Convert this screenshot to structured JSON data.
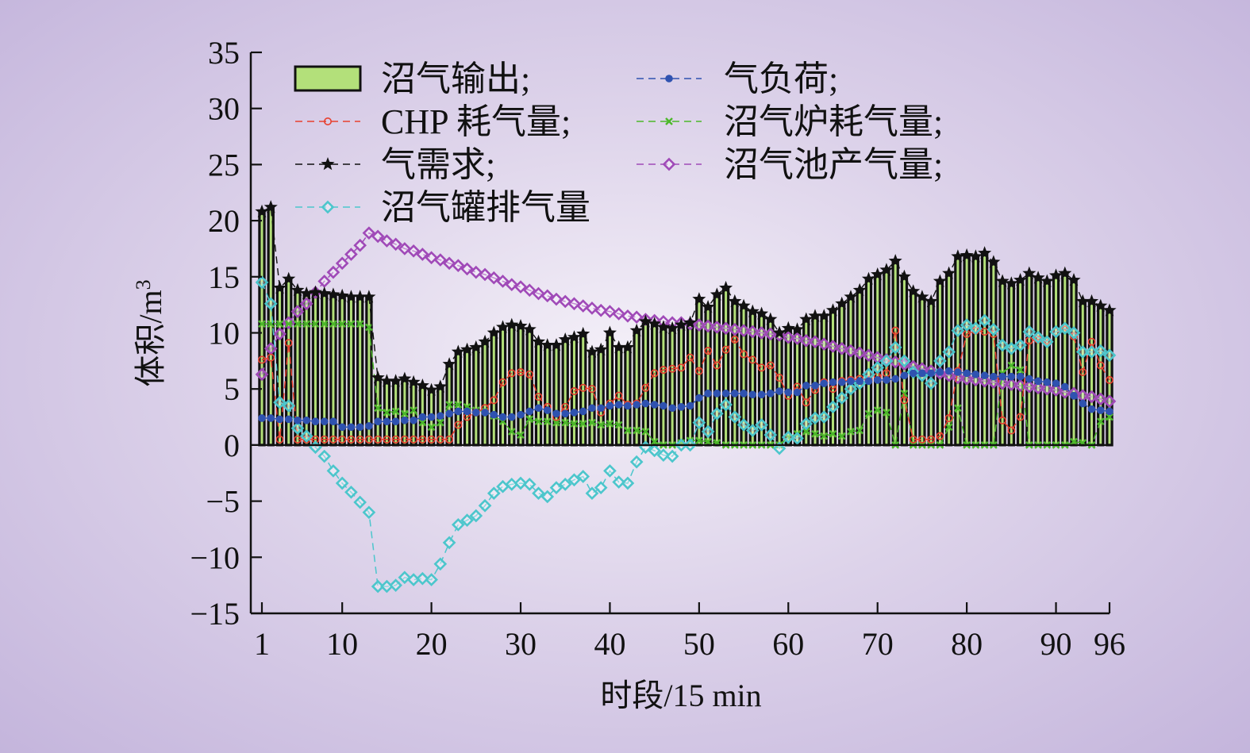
{
  "chart_data": {
    "type": "bar",
    "xlabel": "时段/15 min",
    "ylabel": "体积/m",
    "ylabel_sup": "3",
    "xlim": [
      1,
      96
    ],
    "ylim": [
      -15,
      35
    ],
    "xticks": [
      1,
      10,
      20,
      30,
      40,
      50,
      60,
      70,
      80,
      90,
      96
    ],
    "yticks": [
      -15,
      -10,
      -5,
      0,
      5,
      10,
      15,
      20,
      25,
      30,
      35
    ],
    "x": [
      1,
      2,
      3,
      4,
      5,
      6,
      7,
      8,
      9,
      10,
      11,
      12,
      13,
      14,
      15,
      16,
      17,
      18,
      19,
      20,
      21,
      22,
      23,
      24,
      25,
      26,
      27,
      28,
      29,
      30,
      31,
      32,
      33,
      34,
      35,
      36,
      37,
      38,
      39,
      40,
      41,
      42,
      43,
      44,
      45,
      46,
      47,
      48,
      49,
      50,
      51,
      52,
      53,
      54,
      55,
      56,
      57,
      58,
      59,
      60,
      61,
      62,
      63,
      64,
      65,
      66,
      67,
      68,
      69,
      70,
      71,
      72,
      73,
      74,
      75,
      76,
      77,
      78,
      79,
      80,
      81,
      82,
      83,
      84,
      85,
      86,
      87,
      88,
      89,
      90,
      91,
      92,
      93,
      94,
      95,
      96
    ],
    "colors": {
      "bar": "#b3e07a",
      "chp": "#e8402f",
      "demand": "#111111",
      "tank": "#4cc6cc",
      "load": "#2f52b0",
      "boiler": "#4cb82a",
      "digester": "#a04ab8"
    },
    "series": [
      {
        "key": "bar",
        "name": "沼气输出;",
        "type": "bar",
        "values": [
          20.8,
          21.2,
          14,
          14.8,
          13.8,
          13.5,
          13.6,
          13.5,
          13.4,
          13.3,
          13.2,
          13.2,
          13.2,
          6,
          5.7,
          5.7,
          5.9,
          5.6,
          5.3,
          4.9,
          5.2,
          7.2,
          8.3,
          8.5,
          8.7,
          9.2,
          10,
          10.5,
          10.7,
          10.6,
          10.3,
          9.2,
          8.9,
          8.9,
          9.4,
          9.6,
          9.9,
          8.3,
          8.5,
          10,
          8.7,
          8.7,
          10.2,
          11,
          10.8,
          10.5,
          10.4,
          10.7,
          10.9,
          13,
          12.3,
          13.4,
          14,
          12.8,
          12.4,
          11.9,
          11.7,
          11.2,
          10,
          10.4,
          10.3,
          11.2,
          11.5,
          11.5,
          12,
          12.6,
          13.2,
          13.8,
          14.8,
          15.2,
          15.6,
          16.4,
          15,
          13.7,
          13.2,
          12.8,
          14.6,
          15.3,
          16.8,
          16.9,
          16.8,
          17.1,
          16.3,
          14.6,
          14.4,
          14.7,
          15.3,
          14.9,
          14.6,
          15.1,
          15.3,
          14.7,
          12.8,
          12.8,
          12.4,
          12
        ]
      },
      {
        "key": "chp",
        "name": "CHP 耗气量;",
        "type": "line",
        "marker": "circle",
        "values": [
          7.6,
          7.8,
          0.5,
          9.1,
          0.5,
          0.5,
          0.5,
          0.5,
          0.5,
          0.5,
          0.5,
          0.5,
          0.5,
          0.5,
          0.5,
          0.5,
          0.5,
          0.5,
          0.5,
          0.5,
          0.5,
          0.5,
          1.8,
          2.5,
          2.9,
          3.3,
          4,
          5.6,
          6.4,
          6.5,
          6.3,
          4.3,
          3.4,
          2.5,
          3.4,
          4.8,
          5.1,
          5,
          2.9,
          3.7,
          4.4,
          3.6,
          3.7,
          5.1,
          6.4,
          6.7,
          6.8,
          6.9,
          7.8,
          6.6,
          8.4,
          7.1,
          8.5,
          9.4,
          8.1,
          7.6,
          6.9,
          7.1,
          6,
          4.4,
          5.2,
          3.8,
          4.9,
          5.6,
          5,
          5.7,
          5.8,
          5.9,
          5.8,
          6.1,
          6.4,
          10.2,
          4,
          0.5,
          0.5,
          0.5,
          0.8,
          2.4,
          6.6,
          9.9,
          10.2,
          10.1,
          9.9,
          2.2,
          1.3,
          2.5,
          9.3,
          9.4,
          9.3,
          10.1,
          10.3,
          9.7,
          6.5,
          9.2,
          7.1,
          5.8
        ]
      },
      {
        "key": "demand",
        "name": "气需求;",
        "type": "line",
        "marker": "star",
        "values": [
          20.8,
          21.2,
          14,
          14.8,
          13.8,
          13.5,
          13.6,
          13.5,
          13.4,
          13.3,
          13.2,
          13.2,
          13.2,
          6,
          5.7,
          5.7,
          5.9,
          5.6,
          5.3,
          4.9,
          5.2,
          7.2,
          8.3,
          8.5,
          8.7,
          9.2,
          10,
          10.5,
          10.7,
          10.6,
          10.3,
          9.2,
          8.9,
          8.9,
          9.4,
          9.6,
          9.9,
          8.3,
          8.5,
          10,
          8.7,
          8.7,
          10.2,
          11,
          10.8,
          10.5,
          10.4,
          10.7,
          10.9,
          13,
          12.3,
          13.4,
          14,
          12.8,
          12.4,
          11.9,
          11.7,
          11.2,
          10,
          10.4,
          10.3,
          11.2,
          11.5,
          11.5,
          12,
          12.6,
          13.2,
          13.8,
          14.8,
          15.2,
          15.6,
          16.4,
          15,
          13.7,
          13.2,
          12.8,
          14.6,
          15.3,
          16.8,
          16.9,
          16.8,
          17.1,
          16.3,
          14.6,
          14.4,
          14.7,
          15.3,
          14.9,
          14.6,
          15.1,
          15.3,
          14.7,
          12.8,
          12.8,
          12.4,
          12
        ]
      },
      {
        "key": "tank",
        "name": "沼气罐排气量",
        "type": "line",
        "marker": "diamond",
        "values": [
          14.5,
          12.6,
          3.8,
          3.5,
          1.5,
          0.8,
          -0.2,
          -1,
          -2.3,
          -3.4,
          -4.2,
          -5.1,
          -6,
          -12.6,
          -12.6,
          -12.5,
          -11.8,
          -12,
          -11.9,
          -12,
          -10.6,
          -8.7,
          -7.1,
          -6.7,
          -6.3,
          -5.4,
          -4.3,
          -3.7,
          -3.5,
          -3.4,
          -3.5,
          -4.3,
          -4.6,
          -3.8,
          -3.5,
          -3.1,
          -2.8,
          -4.3,
          -3.8,
          -2.3,
          -3.3,
          -3.4,
          -1.5,
          -0.2,
          -0.5,
          -0.9,
          -1,
          0,
          0,
          2,
          1.2,
          2.8,
          3.6,
          2.5,
          1.8,
          1.3,
          1.8,
          0.9,
          -0.3,
          0.7,
          0.6,
          1.9,
          2.4,
          2.5,
          3.4,
          4.2,
          5,
          5.5,
          6.3,
          6.9,
          7.5,
          8.7,
          7.5,
          6.5,
          6.2,
          5.5,
          7.5,
          8.3,
          10.2,
          10.7,
          10.4,
          11.1,
          10.3,
          8.9,
          8.6,
          8.9,
          10.1,
          9.6,
          9.2,
          10.1,
          10.4,
          10,
          8.3,
          8.3,
          8.4,
          8
        ]
      },
      {
        "key": "load",
        "name": "气负荷;",
        "type": "line",
        "marker": "dot",
        "values": [
          2.4,
          2.4,
          2.3,
          2.3,
          2.2,
          2.2,
          2.1,
          2.1,
          2.1,
          1.6,
          1.6,
          1.6,
          1.7,
          2.1,
          2.1,
          2.1,
          2.2,
          2.2,
          2.5,
          2.5,
          2.6,
          2.8,
          3,
          3,
          2.9,
          2.9,
          2.7,
          2.5,
          2.5,
          2.7,
          3,
          3.3,
          3.1,
          2.8,
          2.8,
          2.9,
          3,
          3.3,
          3.3,
          3.5,
          3.6,
          3.5,
          3.6,
          3.7,
          3.6,
          3.5,
          3.3,
          3.4,
          3.5,
          4.2,
          4.6,
          4.6,
          4.6,
          4.6,
          4.6,
          4.5,
          4.5,
          4.6,
          4.8,
          4.7,
          4.7,
          5.3,
          5.3,
          5.5,
          5.6,
          5.6,
          5.7,
          5.7,
          5.7,
          5.8,
          5.8,
          5.9,
          6.2,
          6.4,
          6.4,
          6.4,
          6.5,
          6.6,
          6.5,
          6.4,
          6.3,
          6.2,
          6.1,
          6.1,
          6.1,
          6.1,
          5.9,
          5.7,
          5.6,
          5.5,
          5.2,
          4.4,
          3.7,
          3.2,
          3.1,
          3
        ]
      },
      {
        "key": "boiler",
        "name": "沼气炉耗气量;",
        "type": "line",
        "marker": "cross",
        "values": [
          10.8,
          10.8,
          10.8,
          10.8,
          10.8,
          10.8,
          10.8,
          10.8,
          10.8,
          10.8,
          10.8,
          10.8,
          10.5,
          3.3,
          2.9,
          3,
          2.8,
          3.1,
          2,
          1.6,
          2,
          3.6,
          3.6,
          3.4,
          3.1,
          3,
          2.6,
          2.1,
          1.2,
          0.9,
          2.3,
          2.1,
          2.1,
          2,
          2,
          1.9,
          1.9,
          2,
          1.8,
          1.9,
          1.8,
          1.3,
          1.3,
          1.2,
          0.3,
          0,
          0,
          0.2,
          0.4,
          0.4,
          0.3,
          0.2,
          0,
          0,
          0,
          0,
          0,
          0,
          0,
          0.7,
          1,
          1.2,
          1,
          0.8,
          1,
          0.8,
          1.2,
          1.3,
          2.8,
          3.1,
          2.9,
          0,
          4.6,
          0,
          0,
          0,
          0,
          1.6,
          3.3,
          0,
          0,
          0,
          0,
          6.4,
          7.1,
          6.7,
          0,
          0,
          0,
          0,
          0,
          0.3,
          0.2,
          0,
          2.1,
          2.5
        ]
      },
      {
        "key": "digester",
        "name": "沼气池产气量;",
        "type": "line",
        "marker": "diamond",
        "values": [
          6.3,
          8.6,
          9.9,
          10.9,
          11.9,
          12.6,
          13.6,
          14.6,
          15.4,
          16.2,
          17,
          17.8,
          18.9,
          18.6,
          18.2,
          17.9,
          17.5,
          17.3,
          17,
          16.7,
          16.5,
          16.2,
          16,
          15.7,
          15.4,
          15.2,
          14.9,
          14.6,
          14.3,
          14.1,
          13.8,
          13.5,
          13.3,
          13,
          12.8,
          12.6,
          12.4,
          12.2,
          12,
          11.9,
          11.7,
          11.5,
          11.4,
          11.2,
          11.1,
          11,
          10.9,
          10.9,
          10.8,
          10.7,
          10.6,
          10.5,
          10.4,
          10.3,
          10.2,
          10.1,
          10,
          9.9,
          9.8,
          9.6,
          9.5,
          9.3,
          9.2,
          9,
          8.8,
          8.6,
          8.4,
          8.2,
          8,
          7.8,
          7.6,
          7.4,
          7.2,
          7,
          6.8,
          6.6,
          6.4,
          6.2,
          6,
          5.9,
          5.8,
          5.7,
          5.6,
          5.5,
          5.4,
          5.3,
          5.2,
          5.1,
          5,
          4.9,
          4.7,
          4.6,
          4.4,
          4.3,
          4.1,
          3.9
        ]
      }
    ],
    "legend": [
      {
        "key": "bar",
        "col": 0,
        "row": 0
      },
      {
        "key": "chp",
        "col": 0,
        "row": 1
      },
      {
        "key": "demand",
        "col": 0,
        "row": 2
      },
      {
        "key": "tank",
        "col": 0,
        "row": 3
      },
      {
        "key": "load",
        "col": 1,
        "row": 0
      },
      {
        "key": "boiler",
        "col": 1,
        "row": 1
      },
      {
        "key": "digester",
        "col": 1,
        "row": 2
      }
    ],
    "legend_location": "top-left",
    "grid": false
  }
}
